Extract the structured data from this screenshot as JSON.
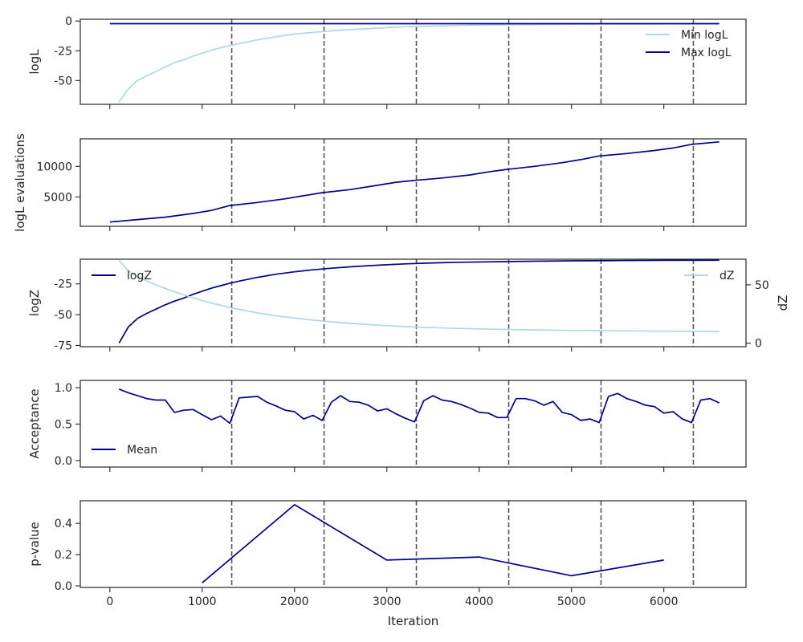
{
  "colors": {
    "light": "#add8e6",
    "dark": "#00008b",
    "vline": "#555555",
    "axis": "#262626"
  },
  "chart_data": [
    {
      "type": "line",
      "ylabel": "logL",
      "xlim": [
        -320,
        6890
      ],
      "ylim": [
        -70,
        1.5
      ],
      "yticks": [
        0,
        -25,
        -50
      ],
      "show_xtick_labels": false,
      "legend": {
        "placement": "top-right"
      },
      "series": [
        {
          "name": "Min logL",
          "color_key": "light",
          "x": [
            100,
            200,
            300,
            400,
            500,
            600,
            700,
            800,
            900,
            1000,
            1100,
            1200,
            1300,
            1400,
            1500,
            1600,
            1700,
            1800,
            1900,
            2000,
            2200,
            2400,
            2600,
            2800,
            3000,
            3200,
            3500,
            3800,
            4200,
            4600,
            5000,
            5500,
            6000,
            6600
          ],
          "y": [
            -68,
            -57,
            -50,
            -46,
            -42.5,
            -38.5,
            -35,
            -32.5,
            -29.5,
            -27,
            -24.5,
            -22.5,
            -20.5,
            -19,
            -17.3,
            -15.8,
            -14.5,
            -13.2,
            -12,
            -11,
            -9.5,
            -8.2,
            -7.2,
            -6.3,
            -5.5,
            -4.8,
            -4.2,
            -3.7,
            -3.2,
            -2.9,
            -2.6,
            -2.5,
            -2.4,
            -2.3
          ]
        },
        {
          "name": "Max logL",
          "color_key": "dark",
          "x": [
            0,
            6600
          ],
          "y": [
            -2.2,
            -2.2
          ]
        }
      ]
    },
    {
      "type": "line",
      "ylabel": "logL evaluations",
      "xlim": [
        -320,
        6890
      ],
      "ylim": [
        200,
        14500
      ],
      "yticks": [
        10000,
        5000
      ],
      "show_xtick_labels": false,
      "series": [
        {
          "color_key": "dark",
          "x": [
            0,
            300,
            600,
            900,
            1100,
            1300,
            1600,
            1900,
            2100,
            2300,
            2600,
            2900,
            3100,
            3300,
            3600,
            3900,
            4100,
            4300,
            4600,
            4900,
            5100,
            5300,
            5600,
            5900,
            6100,
            6300,
            6600
          ],
          "y": [
            900,
            1300,
            1700,
            2300,
            2800,
            3600,
            4100,
            4700,
            5200,
            5700,
            6200,
            6900,
            7400,
            7700,
            8100,
            8600,
            9100,
            9500,
            10000,
            10600,
            11100,
            11700,
            12100,
            12600,
            13000,
            13600,
            14000
          ]
        }
      ]
    },
    {
      "type": "line",
      "ylabel": "logZ",
      "ylabel_right": "dZ",
      "xlim": [
        -320,
        6890
      ],
      "ylim": [
        -76,
        -5
      ],
      "ylim_right": [
        -3,
        72
      ],
      "yticks": [
        -25,
        -50,
        -75
      ],
      "yticks_right": [
        50,
        0
      ],
      "show_xtick_labels": false,
      "legend": {
        "placement": "top-left"
      },
      "legend_right": {
        "placement": "top-right"
      },
      "series": [
        {
          "name": "logZ",
          "color_key": "dark",
          "axis": "left",
          "x": [
            100,
            200,
            300,
            400,
            500,
            600,
            700,
            800,
            900,
            1000,
            1100,
            1200,
            1300,
            1400,
            1500,
            1600,
            1800,
            2000,
            2200,
            2400,
            2600,
            2800,
            3000,
            3200,
            3500,
            3800,
            4200,
            4600,
            5000,
            5500,
            6000,
            6600
          ],
          "y": [
            -73,
            -60,
            -53,
            -49,
            -45.5,
            -42,
            -39,
            -36.5,
            -33.5,
            -31,
            -28.5,
            -26.5,
            -24.5,
            -22.8,
            -21.2,
            -19.7,
            -17.2,
            -15.2,
            -13.6,
            -12.3,
            -11.2,
            -10.3,
            -9.5,
            -8.8,
            -8,
            -7.5,
            -7,
            -6.6,
            -6.3,
            -6.1,
            -5.9,
            -5.8
          ]
        },
        {
          "name": "dZ",
          "color_key": "light",
          "axis": "right",
          "x": [
            100,
            200,
            300,
            400,
            500,
            600,
            700,
            800,
            900,
            1000,
            1100,
            1200,
            1300,
            1400,
            1500,
            1600,
            1800,
            2000,
            2200,
            2400,
            2600,
            2800,
            3000,
            3200,
            3500,
            3800,
            4200,
            4600,
            5000,
            5500,
            6000,
            6600
          ],
          "y": [
            71,
            62,
            57,
            53.5,
            50,
            47,
            44,
            41.5,
            39,
            36.5,
            34.5,
            32.5,
            30.5,
            29,
            27.5,
            26,
            23.5,
            21.5,
            19.8,
            18.3,
            17,
            15.9,
            15,
            14.2,
            13.3,
            12.6,
            11.9,
            11.4,
            11,
            10.6,
            10.3,
            10
          ]
        }
      ]
    },
    {
      "type": "line",
      "ylabel": "Acceptance",
      "xlim": [
        -320,
        6890
      ],
      "ylim": [
        -0.09,
        1.1
      ],
      "yticks": [
        1.0,
        0.5,
        0.0
      ],
      "ytick_labels": [
        "1.0",
        "0.5",
        "0.0"
      ],
      "show_xtick_labels": false,
      "legend": {
        "placement": "lower-left"
      },
      "series": [
        {
          "name": "Mean",
          "color_key": "dark",
          "x": [
            100,
            200,
            300,
            400,
            500,
            600,
            700,
            800,
            900,
            1000,
            1100,
            1200,
            1300,
            1400,
            1500,
            1600,
            1700,
            1800,
            1900,
            2000,
            2100,
            2200,
            2300,
            2400,
            2500,
            2600,
            2700,
            2800,
            2900,
            3000,
            3100,
            3200,
            3300,
            3400,
            3500,
            3600,
            3700,
            3800,
            3900,
            4000,
            4100,
            4200,
            4300,
            4400,
            4500,
            4600,
            4700,
            4800,
            4900,
            5000,
            5100,
            5200,
            5300,
            5400,
            5500,
            5600,
            5700,
            5800,
            5900,
            6000,
            6100,
            6200,
            6300,
            6400,
            6500,
            6600
          ],
          "y": [
            0.98,
            0.93,
            0.89,
            0.85,
            0.83,
            0.83,
            0.66,
            0.69,
            0.7,
            0.63,
            0.56,
            0.61,
            0.51,
            0.86,
            0.87,
            0.88,
            0.8,
            0.75,
            0.69,
            0.67,
            0.57,
            0.62,
            0.55,
            0.8,
            0.89,
            0.81,
            0.8,
            0.76,
            0.68,
            0.71,
            0.64,
            0.58,
            0.53,
            0.82,
            0.89,
            0.83,
            0.81,
            0.77,
            0.72,
            0.66,
            0.65,
            0.59,
            0.59,
            0.85,
            0.85,
            0.82,
            0.76,
            0.81,
            0.66,
            0.63,
            0.55,
            0.57,
            0.52,
            0.88,
            0.92,
            0.85,
            0.81,
            0.76,
            0.74,
            0.65,
            0.67,
            0.57,
            0.52,
            0.83,
            0.85,
            0.79
          ]
        }
      ]
    },
    {
      "type": "line",
      "ylabel": "p-value",
      "xlabel": "Iteration",
      "xlim": [
        -320,
        6890
      ],
      "ylim": [
        -0.01,
        0.545
      ],
      "yticks": [
        0.4,
        0.2,
        0.0
      ],
      "ytick_labels": [
        "0.4",
        "0.2",
        "0.0"
      ],
      "xticks": [
        0,
        1000,
        2000,
        3000,
        4000,
        5000,
        6000
      ],
      "xtick_labels": [
        "0",
        "1000",
        "2000",
        "3000",
        "4000",
        "5000",
        "6000"
      ],
      "show_xtick_labels": true,
      "series": [
        {
          "color_key": "dark",
          "x": [
            1000,
            2000,
            3000,
            4000,
            5000,
            6000
          ],
          "y": [
            0.02,
            0.52,
            0.165,
            0.185,
            0.065,
            0.165
          ]
        }
      ]
    }
  ],
  "vlines": [
    1320,
    2320,
    3320,
    4320,
    5320,
    6320
  ]
}
